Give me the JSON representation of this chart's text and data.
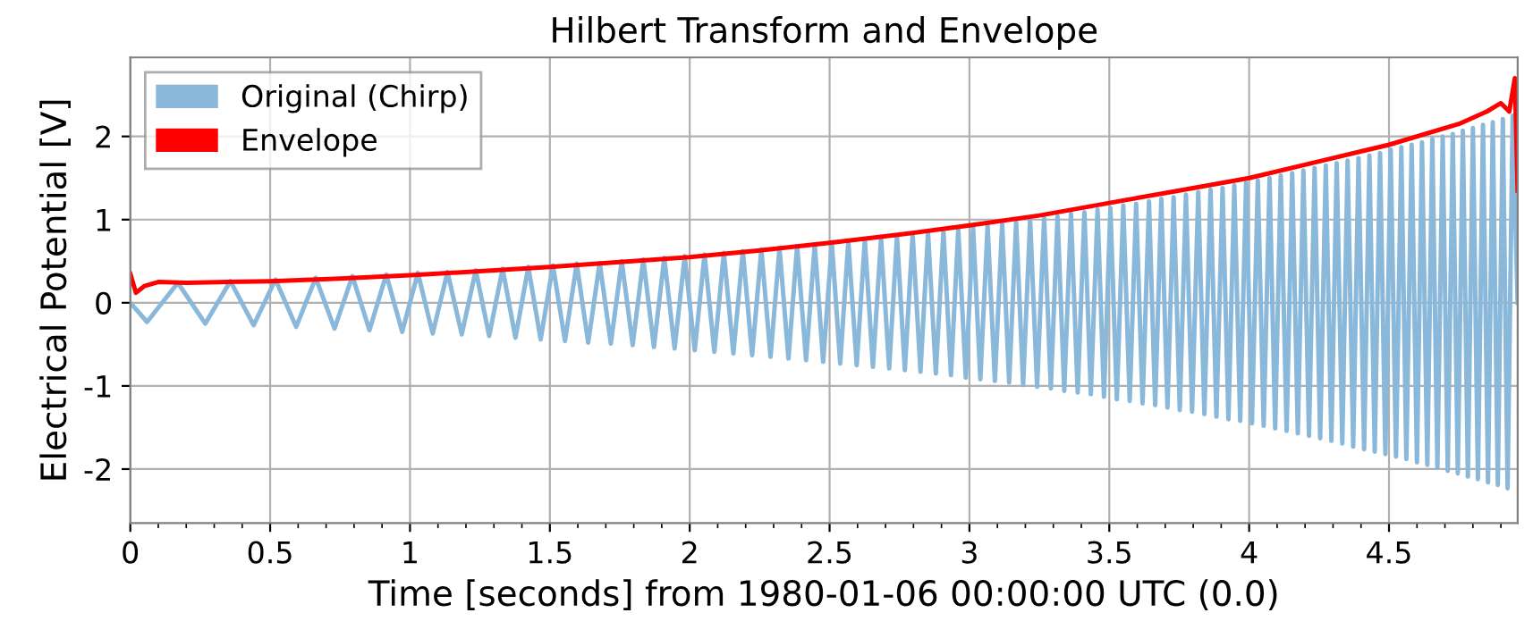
{
  "chart_data": {
    "type": "line",
    "title": "Hilbert Transform and Envelope",
    "xlabel": "Time [seconds] from 1980-01-06 00:00:00 UTC (0.0)",
    "ylabel": "Electrical Potential [V]",
    "xlim": [
      0,
      4.96
    ],
    "ylim": [
      -2.65,
      2.95
    ],
    "xticks": [
      0,
      0.5,
      1,
      1.5,
      2,
      2.5,
      3,
      3.5,
      4,
      4.5
    ],
    "yticks": [
      -2,
      -1,
      0,
      1,
      2
    ],
    "grid": true,
    "legend": "top left",
    "series": [
      {
        "name": "Original (Chirp)",
        "color": "#8ab8da",
        "x": [
          0,
          0.06,
          0.17,
          0.268,
          0.358,
          0.441,
          0.519,
          0.593,
          0.663,
          0.73,
          0.794,
          0.855,
          0.915,
          0.972,
          1.028,
          1.081,
          1.134,
          1.185,
          1.235,
          1.283,
          1.331,
          1.377,
          1.423,
          1.467,
          1.511,
          1.554,
          1.596,
          1.637,
          1.678,
          1.718,
          1.757,
          1.796,
          1.834,
          1.872,
          1.909,
          1.946,
          1.982,
          2.018,
          2.053,
          2.088,
          2.122,
          2.156,
          2.19,
          2.223,
          2.256,
          2.289,
          2.321,
          2.353,
          2.384,
          2.416,
          2.447,
          2.477,
          2.508,
          2.538,
          2.567,
          2.597,
          2.626,
          2.655,
          2.684,
          2.713,
          2.741,
          2.769,
          2.797,
          2.825,
          2.852,
          2.88,
          2.907,
          2.934,
          2.96,
          2.987,
          3.013,
          3.039,
          3.065,
          3.091,
          3.117,
          3.142,
          3.167,
          3.192,
          3.217,
          3.242,
          3.267,
          3.291,
          3.315,
          3.339,
          3.363,
          3.387,
          3.411,
          3.434,
          3.458,
          3.481,
          3.504,
          3.527,
          3.55,
          3.573,
          3.596,
          3.619,
          3.642,
          3.664,
          3.686,
          3.708,
          3.73,
          3.752,
          3.774,
          3.796,
          3.818,
          3.84,
          3.862,
          3.883,
          3.905,
          3.926,
          3.947,
          3.968,
          3.989,
          4.01,
          4.031,
          4.052,
          4.073,
          4.093,
          4.113,
          4.134,
          4.154,
          4.174,
          4.194,
          4.214,
          4.234,
          4.254,
          4.274,
          4.294,
          4.313,
          4.333,
          4.352,
          4.372,
          4.391,
          4.411,
          4.43,
          4.449,
          4.468,
          4.487,
          4.506,
          4.525,
          4.544,
          4.562,
          4.581,
          4.6,
          4.618,
          4.637,
          4.655,
          4.673,
          4.692,
          4.71,
          4.728,
          4.746,
          4.764,
          4.782,
          4.8,
          4.818,
          4.836,
          4.854,
          4.871,
          4.889,
          4.907,
          4.924,
          4.942,
          4.96
        ],
        "values": [
          0,
          -0.23,
          0.24,
          -0.25,
          0.26,
          -0.27,
          0.28,
          -0.29,
          0.3,
          -0.31,
          0.32,
          -0.33,
          0.34,
          -0.35,
          0.36,
          -0.37,
          0.37,
          -0.38,
          0.39,
          -0.4,
          0.41,
          -0.42,
          0.43,
          -0.44,
          0.45,
          -0.46,
          0.47,
          -0.48,
          0.48,
          -0.49,
          0.5,
          -0.51,
          0.52,
          -0.53,
          0.54,
          -0.55,
          0.56,
          -0.57,
          0.58,
          -0.59,
          0.6,
          -0.61,
          0.62,
          -0.63,
          0.64,
          -0.65,
          0.66,
          -0.67,
          0.68,
          -0.69,
          0.7,
          -0.71,
          0.72,
          -0.73,
          0.74,
          -0.75,
          0.76,
          -0.77,
          0.78,
          -0.79,
          0.8,
          -0.81,
          0.82,
          -0.83,
          0.84,
          -0.85,
          0.86,
          -0.87,
          0.88,
          -0.9,
          0.91,
          -0.92,
          0.93,
          -0.94,
          0.95,
          -0.96,
          0.97,
          -0.99,
          1.0,
          -1.01,
          1.02,
          -1.03,
          1.04,
          -1.06,
          1.07,
          -1.08,
          1.09,
          -1.1,
          1.12,
          -1.13,
          1.14,
          -1.16,
          1.17,
          -1.18,
          1.19,
          -1.21,
          1.22,
          -1.23,
          1.25,
          -1.26,
          1.27,
          -1.29,
          1.3,
          -1.31,
          1.33,
          -1.34,
          1.36,
          -1.37,
          1.38,
          -1.4,
          1.41,
          -1.42,
          1.44,
          -1.45,
          1.47,
          -1.48,
          1.5,
          -1.51,
          1.53,
          -1.54,
          1.56,
          -1.57,
          1.59,
          -1.6,
          1.62,
          -1.63,
          1.65,
          -1.66,
          1.68,
          -1.69,
          1.71,
          -1.73,
          1.74,
          -1.76,
          1.77,
          -1.79,
          1.8,
          -1.82,
          1.84,
          -1.85,
          1.87,
          -1.88,
          1.9,
          -1.92,
          1.93,
          -1.95,
          1.97,
          -1.98,
          2.0,
          -2.02,
          2.03,
          -2.05,
          2.07,
          -2.09,
          2.1,
          -2.12,
          2.14,
          -2.16,
          2.17,
          -2.19,
          2.21,
          -2.23,
          2.25,
          0
        ]
      },
      {
        "name": "Envelope",
        "color": "#ff0000",
        "x": [
          0,
          0.02,
          0.05,
          0.1,
          0.2,
          0.5,
          0.75,
          1,
          1.25,
          1.5,
          1.75,
          2,
          2.25,
          2.5,
          2.75,
          3,
          3.25,
          3.5,
          3.75,
          4,
          4.25,
          4.5,
          4.75,
          4.85,
          4.9,
          4.93,
          4.95,
          4.96
        ],
        "values": [
          0.35,
          0.12,
          0.2,
          0.25,
          0.24,
          0.26,
          0.29,
          0.33,
          0.38,
          0.43,
          0.49,
          0.55,
          0.63,
          0.72,
          0.82,
          0.93,
          1.05,
          1.2,
          1.35,
          1.5,
          1.7,
          1.9,
          2.15,
          2.3,
          2.4,
          2.3,
          2.7,
          1.35
        ]
      }
    ]
  }
}
